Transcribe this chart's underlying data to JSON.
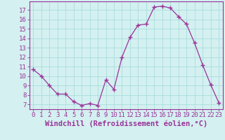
{
  "x": [
    0,
    1,
    2,
    3,
    4,
    5,
    6,
    7,
    8,
    9,
    10,
    11,
    12,
    13,
    14,
    15,
    16,
    17,
    18,
    19,
    20,
    21,
    22,
    23
  ],
  "y": [
    10.7,
    10.0,
    9.0,
    8.1,
    8.1,
    7.3,
    6.9,
    7.1,
    6.9,
    9.6,
    8.6,
    12.0,
    14.1,
    15.4,
    15.5,
    17.3,
    17.4,
    17.2,
    16.3,
    15.5,
    13.5,
    11.2,
    9.1,
    7.2
  ],
  "line_color": "#993399",
  "marker": "+",
  "marker_size": 4,
  "bg_color": "#d4f0f0",
  "grid_color": "#aadddd",
  "axis_color": "#993399",
  "tick_color": "#993399",
  "xlabel": "Windchill (Refroidissement éolien,°C)",
  "xlim": [
    -0.5,
    23.5
  ],
  "ylim": [
    6.5,
    17.9
  ],
  "yticks": [
    7,
    8,
    9,
    10,
    11,
    12,
    13,
    14,
    15,
    16,
    17
  ],
  "xticks": [
    0,
    1,
    2,
    3,
    4,
    5,
    6,
    7,
    8,
    9,
    10,
    11,
    12,
    13,
    14,
    15,
    16,
    17,
    18,
    19,
    20,
    21,
    22,
    23
  ],
  "font_size": 6.5,
  "label_font_size": 7.5
}
